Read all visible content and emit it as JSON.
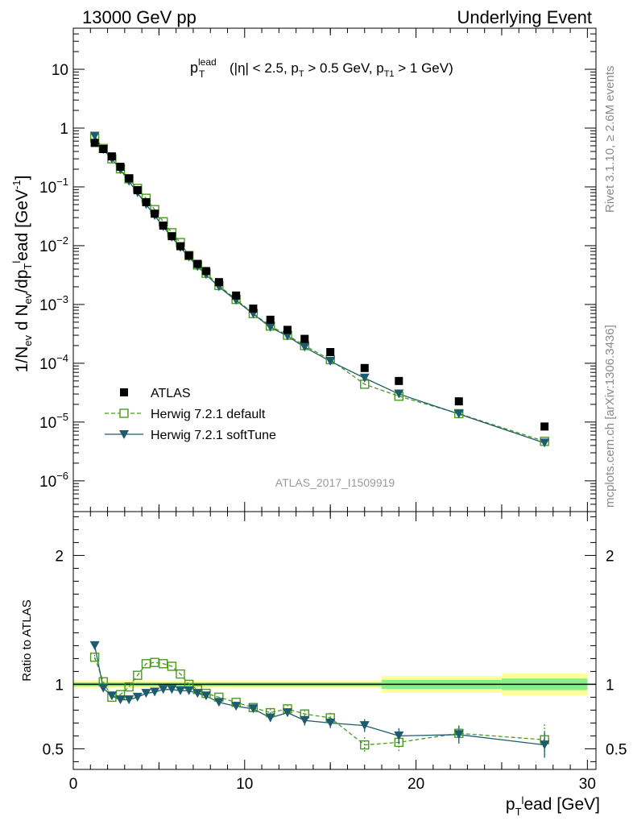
{
  "header": {
    "left": "13000 GeV pp",
    "right": "Underlying Event"
  },
  "side": {
    "rivet": "Rivet 3.1.10, ≥ 2.6M events",
    "mcplots": "mcplots.cern.ch [arXiv:1306.3436]"
  },
  "plot_title": {
    "p": "p",
    "sup": "lead",
    "sub": "T",
    "rest1": "(|η| < 2.5, p",
    "sub2": "T",
    "rest2": " > 0.5 GeV, p",
    "sub3": "T1",
    "rest3": " > 1 GeV)"
  },
  "watermark": "ATLAS_2017_I1509919",
  "colors": {
    "atlas": "#000000",
    "default": "#4a9a1e",
    "softtune": "#1d5b6e",
    "band_yellow": "#ffff99",
    "band_green": "#88ee88"
  },
  "chart_data": [
    {
      "type": "scatter",
      "panel": "main",
      "xlabel": "p_T^lead [GeV]",
      "ylabel": "1/N_ev d N_ev/dp_T^lead [GeV^-1]",
      "xlim": [
        0,
        30.5
      ],
      "ylim": [
        3e-07,
        50
      ],
      "yscale": "log",
      "yticks": [
        {
          "v": 1e-06,
          "base": "10",
          "exp": "−6"
        },
        {
          "v": 1e-05,
          "base": "10",
          "exp": "−5"
        },
        {
          "v": 0.0001,
          "base": "10",
          "exp": "−4"
        },
        {
          "v": 0.001,
          "base": "10",
          "exp": "−3"
        },
        {
          "v": 0.01,
          "base": "10",
          "exp": "−2"
        },
        {
          "v": 0.1,
          "base": "10",
          "exp": "−1"
        },
        {
          "v": 1,
          "base": "1",
          "exp": ""
        },
        {
          "v": 10,
          "base": "10",
          "exp": ""
        }
      ],
      "x": [
        1.25,
        1.75,
        2.25,
        2.75,
        3.25,
        3.75,
        4.25,
        4.75,
        5.25,
        5.75,
        6.25,
        6.75,
        7.25,
        7.75,
        8.5,
        9.5,
        10.5,
        11.5,
        12.5,
        13.5,
        15,
        17,
        19,
        22.5,
        27.5
      ],
      "series": [
        {
          "name": "ATLAS",
          "marker": "square",
          "values": [
            0.56,
            0.44,
            0.33,
            0.22,
            0.14,
            0.088,
            0.055,
            0.035,
            0.022,
            0.0145,
            0.0098,
            0.0068,
            0.0049,
            0.0037,
            0.0024,
            0.00142,
            0.00085,
            0.00055,
            0.00037,
            0.00026,
            0.000155,
            8.3e-05,
            5e-05,
            2.25e-05,
            8.4e-06
          ]
        },
        {
          "name": "Herwig 7.2.1 default",
          "marker": "open-square",
          "line": "dashed",
          "values": [
            0.68,
            0.45,
            0.3,
            0.203,
            0.137,
            0.094,
            0.064,
            0.041,
            0.0255,
            0.0166,
            0.0113,
            0.0068,
            0.0047,
            0.0034,
            0.0021,
            0.00122,
            0.0007,
            0.00043,
            0.0003,
            0.0002,
            0.000115,
            4.4e-05,
            2.75e-05,
            1.39e-05,
            4.7e-06
          ]
        },
        {
          "name": "Herwig 7.2.1 softTune",
          "marker": "triangle-down",
          "line": "solid",
          "values": [
            0.73,
            0.43,
            0.3,
            0.196,
            0.124,
            0.079,
            0.05,
            0.0325,
            0.021,
            0.0139,
            0.0093,
            0.0064,
            0.0044,
            0.0032,
            0.002,
            0.00117,
            0.00069,
            0.00041,
            0.00029,
            0.000188,
            0.000108,
            5.6e-05,
            3e-05,
            1.37e-05,
            4.4e-06
          ]
        }
      ],
      "legend": [
        "ATLAS",
        "Herwig 7.2.1 default",
        "Herwig 7.2.1 softTune"
      ],
      "legend_position": "lower-left"
    },
    {
      "type": "line",
      "panel": "ratio",
      "xlabel": "p_T^lead [GeV]",
      "ylabel": "Ratio to ATLAS",
      "xlim": [
        0,
        30.5
      ],
      "ylim": [
        0.34,
        2.34
      ],
      "yticks": [
        0.5,
        1,
        2
      ],
      "xticks": [
        0,
        10,
        20,
        30
      ],
      "x": [
        1.25,
        1.75,
        2.25,
        2.75,
        3.25,
        3.75,
        4.25,
        4.75,
        5.25,
        5.75,
        6.25,
        6.75,
        7.25,
        7.75,
        8.5,
        9.5,
        10.5,
        11.5,
        12.5,
        13.5,
        15,
        17,
        19,
        22.5,
        27.5
      ],
      "series": [
        {
          "name": "Herwig 7.2.1 default",
          "values": [
            1.21,
            1.02,
            0.9,
            0.92,
            0.98,
            1.07,
            1.16,
            1.17,
            1.16,
            1.14,
            1.08,
            1.0,
            0.96,
            0.93,
            0.9,
            0.86,
            0.82,
            0.78,
            0.81,
            0.77,
            0.74,
            0.53,
            0.55,
            0.62,
            0.57
          ],
          "errors": [
            0.02,
            0.01,
            0.01,
            0.01,
            0.01,
            0.01,
            0.01,
            0.01,
            0.01,
            0.01,
            0.01,
            0.01,
            0.01,
            0.01,
            0.01,
            0.01,
            0.02,
            0.03,
            0.03,
            0.03,
            0.04,
            0.06,
            0.07,
            0.06,
            0.12
          ]
        },
        {
          "name": "Herwig 7.2.1 softTune",
          "values": [
            1.3,
            0.97,
            0.91,
            0.88,
            0.88,
            0.9,
            0.93,
            0.94,
            0.96,
            0.96,
            0.95,
            0.95,
            0.93,
            0.91,
            0.86,
            0.83,
            0.81,
            0.74,
            0.78,
            0.72,
            0.7,
            0.68,
            0.6,
            0.61,
            0.53
          ],
          "errors": [
            0.02,
            0.01,
            0.01,
            0.01,
            0.01,
            0.01,
            0.01,
            0.01,
            0.01,
            0.01,
            0.01,
            0.01,
            0.01,
            0.01,
            0.01,
            0.01,
            0.02,
            0.03,
            0.03,
            0.04,
            0.04,
            0.05,
            0.06,
            0.07,
            0.1
          ]
        }
      ],
      "bands": [
        {
          "x0": 0,
          "x1": 18,
          "yellow": 0.03,
          "green": 0.015
        },
        {
          "x0": 18,
          "x1": 25,
          "yellow": 0.065,
          "green": 0.035
        },
        {
          "x0": 25,
          "x1": 30,
          "yellow": 0.085,
          "green": 0.045
        }
      ]
    }
  ]
}
